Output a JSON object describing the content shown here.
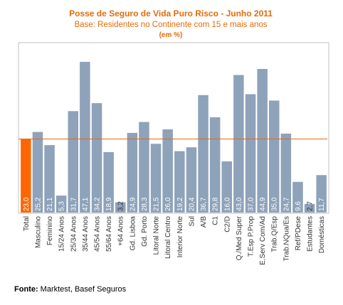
{
  "chart_data": {
    "type": "bar",
    "title": "Posse de Seguro de Vida Puro Risco - Junho 2011",
    "subtitle": "Base: Residentes no Continente com 15 e mais anos",
    "unit": "(em %)",
    "categories": [
      "Total",
      "Masculino",
      "Feminino",
      "15/24 Anos",
      "25/34 Anos",
      "35/44 Anos",
      "45/54 Anos",
      "55/64 Anos",
      "+64 Anos",
      "Gd. Lisboa",
      "Gd. Porto",
      "Litoral Norte",
      "Litoral Centro",
      "Interior Norte",
      "Sul",
      "A/B",
      "C1",
      "C2/D",
      "Q./Med Super",
      "T.Esp P.Prop",
      "E.Serv Com/Ad",
      "Trab.Q/Esp",
      "Trab.NQua/Es",
      "Ref/PDese",
      "Estudantes",
      "Domésticas"
    ],
    "values": [
      23.0,
      25.2,
      21.1,
      5.3,
      31.7,
      47.1,
      34.2,
      18.9,
      3.2,
      24.9,
      28.3,
      21.5,
      26.0,
      19.2,
      20.4,
      36.7,
      29.8,
      16.0,
      43.0,
      37.0,
      44.9,
      35.0,
      24.7,
      9.6,
      2.7,
      11.7
    ],
    "value_labels": [
      "23,0",
      "25,2",
      "21,1",
      "5,3",
      "31,7",
      "47,1",
      "34,2",
      "18,9",
      "3,2",
      "24,9",
      "28,3",
      "21,5",
      "26,0",
      "19,2",
      "20,4",
      "36,7",
      "29,8",
      "16,0",
      "43,0",
      "37,0",
      "44,9",
      "35,0",
      "24,7",
      "9,6",
      "2,7",
      "11,7"
    ],
    "highlight_category": "Total",
    "reference_line": 23.0,
    "ylim": [
      0,
      50
    ],
    "grid": false,
    "colors": {
      "bar": "#8ea2ba",
      "highlight": "#ff6600",
      "reference_line": "#e36c0a",
      "title": "#e36c0a",
      "plot_border": "#c0c0c0"
    }
  },
  "source": {
    "prefix": "Fonte:",
    "text": " Marktest, Basef Seguros"
  }
}
